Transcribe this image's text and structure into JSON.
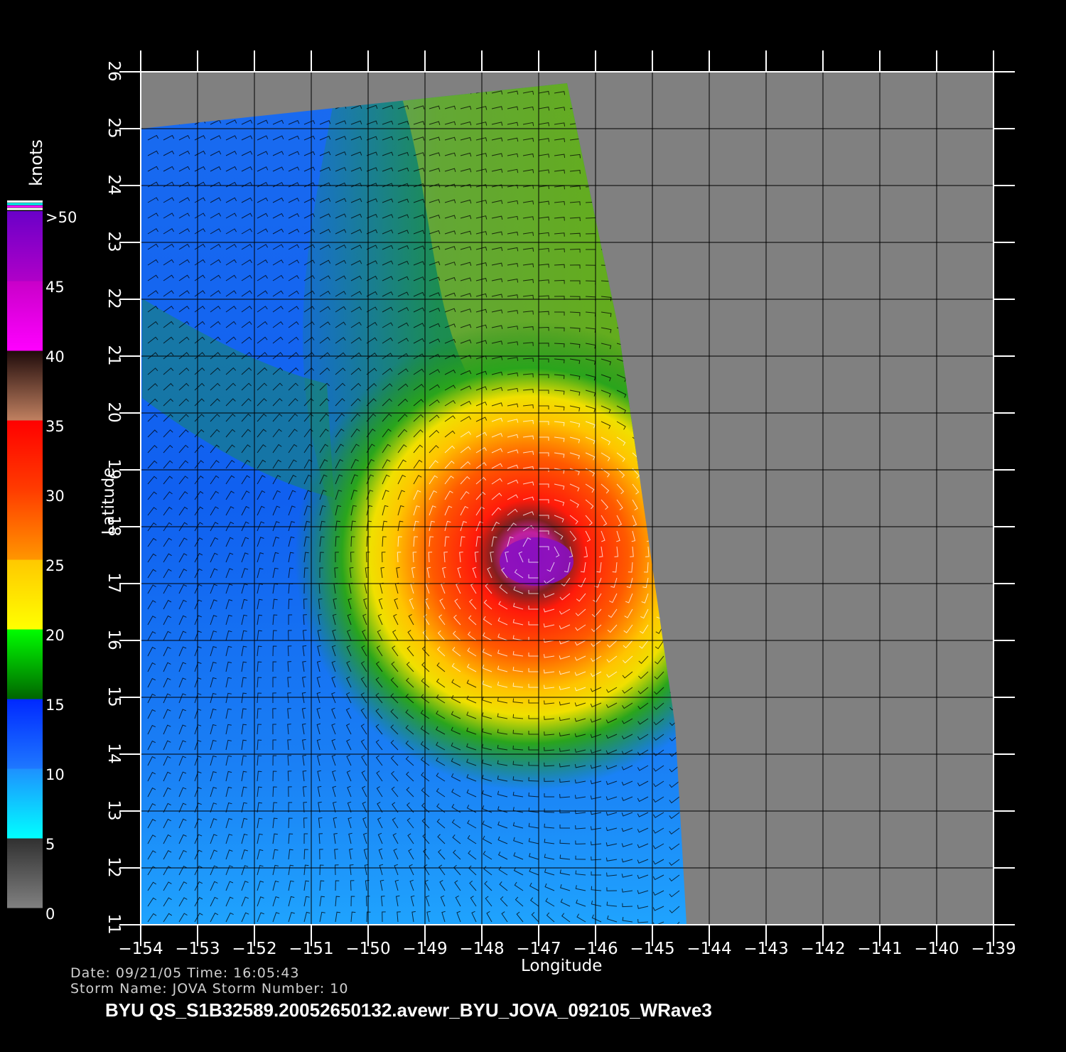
{
  "map": {
    "region": {
      "lon_range": [
        -154,
        -139
      ],
      "lat_range": [
        11,
        26
      ]
    },
    "x_ticks": [
      "−154",
      "−153",
      "−152",
      "−151",
      "−150",
      "−149",
      "−148",
      "−147",
      "−146",
      "−145",
      "−144",
      "−143",
      "−142",
      "−141",
      "−140",
      "−139"
    ],
    "y_ticks": [
      "11",
      "12",
      "13",
      "14",
      "15",
      "16",
      "17",
      "18",
      "19",
      "20",
      "21",
      "22",
      "23",
      "24",
      "25",
      "26"
    ],
    "xlabel": "Longitude",
    "ylabel": "Latitude",
    "storm_center": {
      "lon": -147,
      "lat": 17.5
    },
    "swath_east_edge": [
      [
        -146.5,
        25.8
      ],
      [
        -145.6,
        21.5
      ],
      [
        -144.6,
        14.5
      ],
      [
        -144.4,
        11
      ]
    ],
    "colors": {
      "no_data": "#808080",
      "grid": "#000000",
      "frame": "#ffffff"
    }
  },
  "colorbar": {
    "unit": "knots",
    "labels": [
      ">50",
      "45",
      "40",
      "35",
      "30",
      "25",
      "20",
      "15",
      "10",
      "5",
      "0"
    ],
    "bands": [
      {
        "from": 0,
        "to": 5,
        "colors": [
          "#808080",
          "#303030"
        ]
      },
      {
        "from": 5,
        "to": 10,
        "colors": [
          "#00ffff",
          "#1e90ff"
        ]
      },
      {
        "from": 10,
        "to": 15,
        "colors": [
          "#1e78ff",
          "#0028ff"
        ]
      },
      {
        "from": 15,
        "to": 20,
        "colors": [
          "#006400",
          "#00ff00"
        ]
      },
      {
        "from": 20,
        "to": 25,
        "colors": [
          "#ffff00",
          "#ffc800"
        ]
      },
      {
        "from": 25,
        "to": 30,
        "colors": [
          "#ff9600",
          "#ff3c00"
        ]
      },
      {
        "from": 30,
        "to": 35,
        "colors": [
          "#ff3c00",
          "#ff0000"
        ]
      },
      {
        "from": 35,
        "to": 40,
        "colors": [
          "#c08060",
          "#1e0a0a"
        ]
      },
      {
        "from": 40,
        "to": 45,
        "colors": [
          "#ff00ff",
          "#c800c8"
        ]
      },
      {
        "from": 45,
        "to": 50,
        "colors": [
          "#b000c8",
          "#6a00c8"
        ]
      }
    ]
  },
  "footer": {
    "line1": "Date:  09/21/05    Time:  16:05:43",
    "line2": "Storm  Name:  JOVA    Storm  Number:  10",
    "title": "BYU  QS_S1B32589.20052650132.avewr_BYU_JOVA_092105_WRave3"
  }
}
